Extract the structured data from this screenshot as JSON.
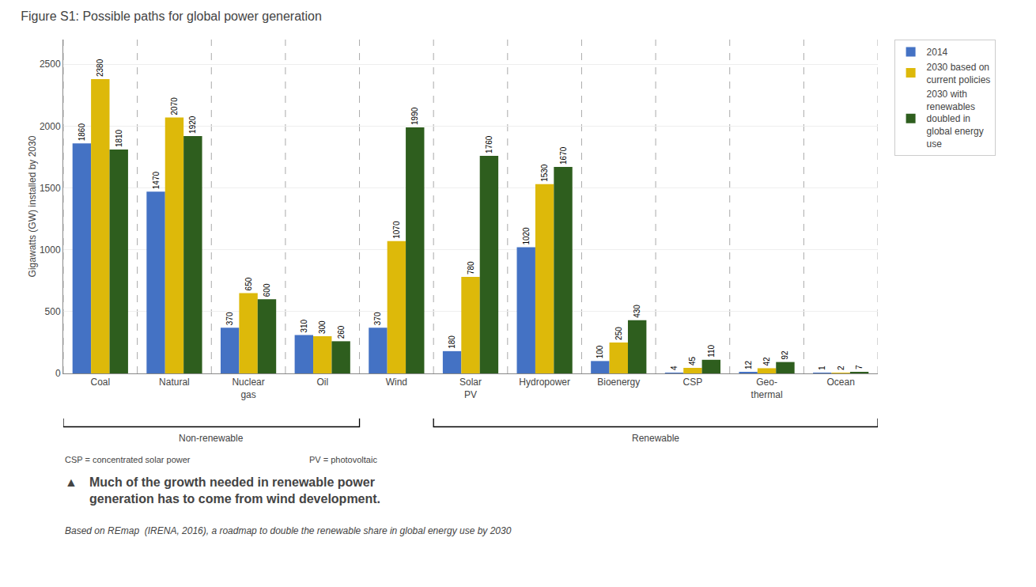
{
  "chart_data": {
    "type": "bar",
    "title": "Figure S1: Possible paths for global power generation",
    "categories": [
      "Coal",
      "Natural",
      "Nuclear\ngas",
      "Oil",
      "Wind",
      "Solar\nPV",
      "Hydropower",
      "Bioenergy",
      "CSP",
      "Geo-\nthermal",
      "Ocean"
    ],
    "series": [
      {
        "name": "2014",
        "color": "#4472C4",
        "values": [
          1860,
          1470,
          370,
          310,
          370,
          180,
          1020,
          100,
          4,
          12,
          1
        ]
      },
      {
        "name": "2030 based on\ncurrent policies",
        "color": "#DDB90A",
        "values": [
          2380,
          2070,
          650,
          300,
          1070,
          780,
          1530,
          250,
          45,
          42,
          2
        ]
      },
      {
        "name": "2030 with\nrenewables\ndoubled in\nglobal energy\nuse",
        "color": "#2E5E1E",
        "values": [
          1810,
          1920,
          600,
          260,
          1990,
          1760,
          1670,
          430,
          110,
          92,
          7
        ]
      }
    ],
    "ylabel": "Gigawatts (GW) installed by 2030",
    "ylim": [
      0,
      2700
    ],
    "yticks": [
      0,
      500,
      1000,
      1500,
      2000,
      2500
    ],
    "grid": true,
    "legend": "upper right",
    "data_labels": true,
    "annotations": [
      {
        "text": "Non-renewable",
        "from": "Coal",
        "to": "Oil"
      },
      {
        "text": "Renewable",
        "from": "Solar\nPV",
        "to": "Ocean"
      }
    ],
    "footnotes": [
      "CSP = concentrated solar power",
      "PV = photovoltaic"
    ],
    "caption": [
      "▲",
      "Much of the growth needed in renewable power\ngeneration has to come from wind development."
    ],
    "source": "Based on REmap  (IRENA, 2016), a roadmap to double the renewable share in global energy use by 2030"
  }
}
